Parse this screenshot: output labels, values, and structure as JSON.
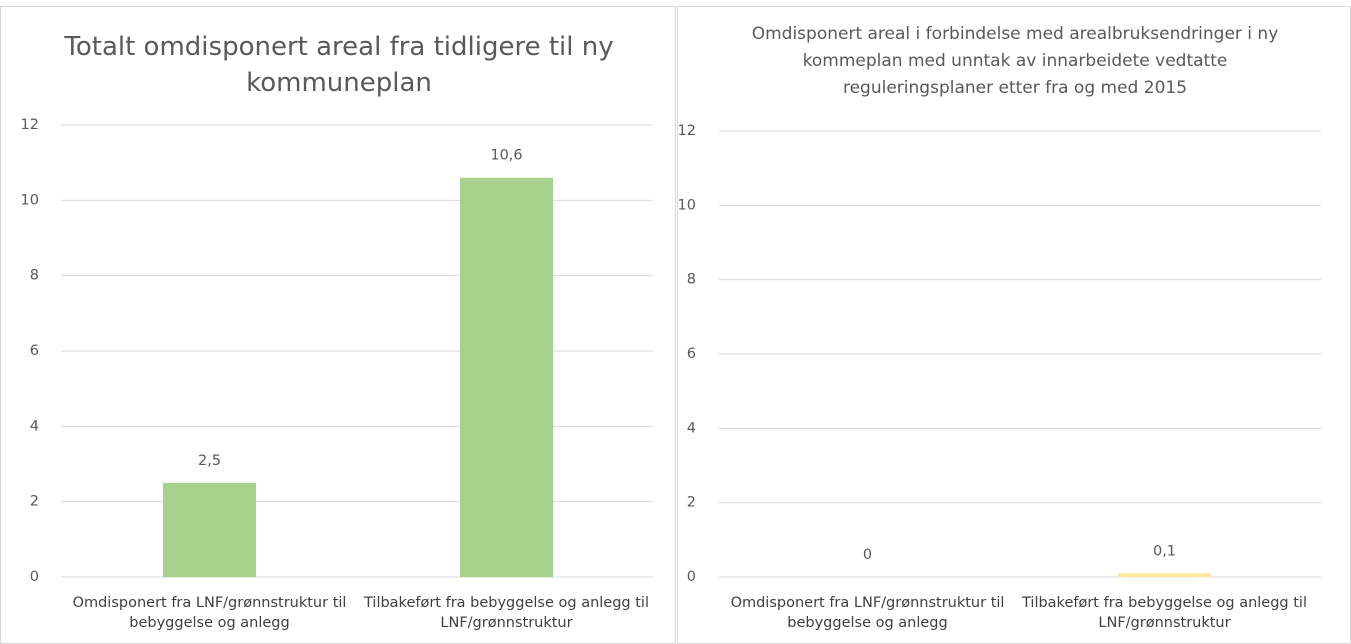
{
  "chart_data": [
    {
      "type": "bar",
      "title": "Totalt omdisponert areal fra tidligere til ny kommuneplan",
      "categories": [
        "Omdisponert fra LNF/grønnstruktur til bebyggelse og anlegg",
        "Tilbakeført fra bebyggelse og anlegg til LNF/grønnstruktur"
      ],
      "values": [
        2.5,
        10.6
      ],
      "value_labels": [
        "2,5",
        "10,6"
      ],
      "color": "#a9d18e",
      "ylim": [
        0,
        12
      ],
      "yticks": [
        0,
        2,
        4,
        6,
        8,
        10,
        12
      ],
      "grid": true
    },
    {
      "type": "bar",
      "title": "Omdisponert areal i forbindelse med arealbruksendringer i ny kommeplan med unntak av innarbeidete vedtatte reguleringsplaner etter fra og med 2015",
      "categories": [
        "Omdisponert fra LNF/grønnstruktur til bebyggelse og anlegg",
        "Tilbakeført fra bebyggelse og anlegg til LNF/grønnstruktur"
      ],
      "values": [
        0,
        0.1
      ],
      "value_labels": [
        "0",
        "0,1"
      ],
      "color": "#ffe699",
      "ylim": [
        0,
        12
      ],
      "yticks": [
        0,
        2,
        4,
        6,
        8,
        10,
        12
      ],
      "grid": true
    }
  ]
}
